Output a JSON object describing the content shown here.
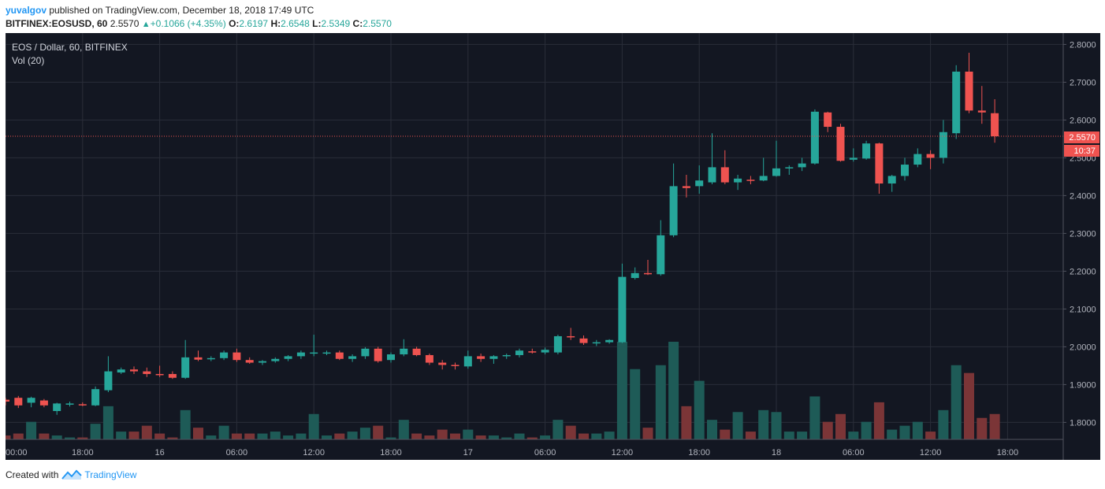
{
  "header": {
    "author": "yuvalgov",
    "published": "published on TradingView.com, December 18, 2018 17:49 UTC",
    "symbol": "BITFINEX:EOSUSD, 60",
    "last": "2.5570",
    "change": "+0.1066 (+4.35%)",
    "o_label": "O:",
    "o_value": "2.6197",
    "h_label": "H:",
    "h_value": "2.6548",
    "l_label": "L:",
    "l_value": "2.5349",
    "c_label": "C:",
    "c_value": "2.5570"
  },
  "footer": {
    "created_with": "Created with",
    "brand": "TradingView"
  },
  "colors": {
    "background": "#131722",
    "grid": "#2a2e39",
    "up": "#26a69a",
    "down": "#ef5350",
    "up_volume": "#1e5b57",
    "down_volume": "#7b3537",
    "price_line": "#ef5350"
  },
  "chart_data": {
    "type": "candlestick",
    "title": "EOS / Dollar, 60, BITFINEX",
    "indicator": "Vol (20)",
    "last_price_label": "2.5570",
    "countdown_label": "10:37",
    "ylim": [
      1.755,
      2.83
    ],
    "y_ticks": [
      "2.8000",
      "2.7000",
      "2.6000",
      "2.5000",
      "2.4000",
      "2.3000",
      "2.2000",
      "2.1000",
      "2.0000",
      "1.9000",
      "1.8000"
    ],
    "x_ticks": [
      {
        "label": "00:00",
        "i": 0
      },
      {
        "label": "18:00",
        "i": 6
      },
      {
        "label": "16",
        "i": 12
      },
      {
        "label": "06:00",
        "i": 18
      },
      {
        "label": "12:00",
        "i": 24
      },
      {
        "label": "18:00",
        "i": 30
      },
      {
        "label": "17",
        "i": 36
      },
      {
        "label": "06:00",
        "i": 42
      },
      {
        "label": "12:00",
        "i": 48
      },
      {
        "label": "18:00",
        "i": 54
      },
      {
        "label": "18",
        "i": 60
      },
      {
        "label": "06:00",
        "i": 66
      },
      {
        "label": "12:00",
        "i": 72
      },
      {
        "label": "18:00",
        "i": 78
      }
    ],
    "candles": [
      [
        1.86,
        1.865,
        1.845,
        1.855
      ],
      [
        1.865,
        1.87,
        1.838,
        1.845
      ],
      [
        1.852,
        1.868,
        1.84,
        1.865
      ],
      [
        1.858,
        1.862,
        1.84,
        1.845
      ],
      [
        1.83,
        1.852,
        1.82,
        1.85
      ],
      [
        1.848,
        1.855,
        1.842,
        1.85
      ],
      [
        1.848,
        1.853,
        1.843,
        1.847
      ],
      [
        1.845,
        1.895,
        1.843,
        1.888
      ],
      [
        1.885,
        1.975,
        1.88,
        1.935
      ],
      [
        1.932,
        1.945,
        1.928,
        1.94
      ],
      [
        1.94,
        1.948,
        1.928,
        1.935
      ],
      [
        1.935,
        1.945,
        1.92,
        1.928
      ],
      [
        1.928,
        1.95,
        1.92,
        1.925
      ],
      [
        1.928,
        1.935,
        1.915,
        1.918
      ],
      [
        1.918,
        2.018,
        1.915,
        1.972
      ],
      [
        1.972,
        1.99,
        1.962,
        1.966
      ],
      [
        1.968,
        1.975,
        1.962,
        1.97
      ],
      [
        1.97,
        1.99,
        1.965,
        1.985
      ],
      [
        1.985,
        1.995,
        1.96,
        1.965
      ],
      [
        1.965,
        1.972,
        1.955,
        1.958
      ],
      [
        1.958,
        1.965,
        1.952,
        1.962
      ],
      [
        1.962,
        1.972,
        1.958,
        1.968
      ],
      [
        1.968,
        1.978,
        1.962,
        1.975
      ],
      [
        1.975,
        1.99,
        1.968,
        1.985
      ],
      [
        1.982,
        2.032,
        1.975,
        1.985
      ],
      [
        1.983,
        1.99,
        1.978,
        1.985
      ],
      [
        1.985,
        1.99,
        1.965,
        1.968
      ],
      [
        1.968,
        1.98,
        1.96,
        1.975
      ],
      [
        1.975,
        1.999,
        1.968,
        1.995
      ],
      [
        1.995,
        2.0,
        1.958,
        1.962
      ],
      [
        1.965,
        1.985,
        1.958,
        1.98
      ],
      [
        1.98,
        2.02,
        1.975,
        1.995
      ],
      [
        1.995,
        2.0,
        1.975,
        1.978
      ],
      [
        1.978,
        1.982,
        1.952,
        1.958
      ],
      [
        1.958,
        1.965,
        1.94,
        1.952
      ],
      [
        1.952,
        1.958,
        1.94,
        1.95
      ],
      [
        1.948,
        1.99,
        1.942,
        1.975
      ],
      [
        1.975,
        1.982,
        1.96,
        1.968
      ],
      [
        1.968,
        1.978,
        1.955,
        1.975
      ],
      [
        1.975,
        1.982,
        1.968,
        1.978
      ],
      [
        1.978,
        1.995,
        1.972,
        1.99
      ],
      [
        1.988,
        1.995,
        1.982,
        1.985
      ],
      [
        1.985,
        1.998,
        1.98,
        1.992
      ],
      [
        1.985,
        2.032,
        1.98,
        2.028
      ],
      [
        2.028,
        2.05,
        2.018,
        2.025
      ],
      [
        2.022,
        2.03,
        2.005,
        2.01
      ],
      [
        2.01,
        2.018,
        2.002,
        2.012
      ],
      [
        2.012,
        2.02,
        2.008,
        2.018
      ],
      [
        2.012,
        2.22,
        2.01,
        2.185
      ],
      [
        2.182,
        2.21,
        2.178,
        2.195
      ],
      [
        2.195,
        2.23,
        2.19,
        2.192
      ],
      [
        2.192,
        2.335,
        2.188,
        2.295
      ],
      [
        2.295,
        2.485,
        2.29,
        2.425
      ],
      [
        2.425,
        2.455,
        2.395,
        2.42
      ],
      [
        2.425,
        2.48,
        2.405,
        2.44
      ],
      [
        2.435,
        2.565,
        2.43,
        2.475
      ],
      [
        2.475,
        2.52,
        2.43,
        2.435
      ],
      [
        2.435,
        2.455,
        2.415,
        2.445
      ],
      [
        2.442,
        2.452,
        2.43,
        2.44
      ],
      [
        2.44,
        2.5,
        2.438,
        2.452
      ],
      [
        2.452,
        2.545,
        2.45,
        2.472
      ],
      [
        2.472,
        2.48,
        2.455,
        2.475
      ],
      [
        2.475,
        2.5,
        2.465,
        2.485
      ],
      [
        2.485,
        2.628,
        2.482,
        2.622
      ],
      [
        2.62,
        2.622,
        2.568,
        2.582
      ],
      [
        2.582,
        2.59,
        2.49,
        2.492
      ],
      [
        2.495,
        2.525,
        2.49,
        2.5
      ],
      [
        2.498,
        2.545,
        2.495,
        2.538
      ],
      [
        2.538,
        2.54,
        2.405,
        2.432
      ],
      [
        2.432,
        2.455,
        2.41,
        2.452
      ],
      [
        2.452,
        2.5,
        2.44,
        2.482
      ],
      [
        2.482,
        2.525,
        2.475,
        2.51
      ],
      [
        2.51,
        2.52,
        2.47,
        2.5
      ],
      [
        2.5,
        2.6,
        2.485,
        2.568
      ],
      [
        2.565,
        2.745,
        2.55,
        2.728
      ],
      [
        2.728,
        2.778,
        2.618,
        2.625
      ],
      [
        2.625,
        2.69,
        2.59,
        2.62
      ],
      [
        2.618,
        2.655,
        2.54,
        2.557
      ]
    ],
    "volumes": [
      10,
      15,
      45,
      15,
      10,
      5,
      5,
      40,
      85,
      20,
      20,
      35,
      15,
      5,
      75,
      30,
      10,
      35,
      15,
      15,
      15,
      20,
      10,
      15,
      65,
      10,
      15,
      20,
      30,
      35,
      5,
      50,
      15,
      10,
      25,
      15,
      25,
      10,
      10,
      5,
      15,
      5,
      10,
      50,
      35,
      15,
      15,
      20,
      250,
      180,
      30,
      190,
      250,
      85,
      150,
      50,
      25,
      70,
      20,
      75,
      70,
      20,
      20,
      110,
      45,
      65,
      20,
      45,
      95,
      25,
      35,
      45,
      20,
      75,
      190,
      170,
      55,
      65
    ]
  }
}
